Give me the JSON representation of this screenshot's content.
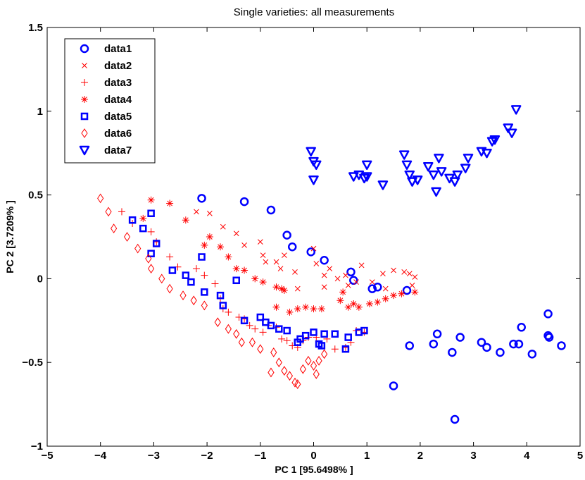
{
  "chart_data": {
    "type": "scatter",
    "title": "Single varieties: all measurements",
    "xlabel": "PC 1 [95.6498% ]",
    "ylabel": "PC 2 [3.7209% ]",
    "xlim": [
      -5,
      5
    ],
    "ylim": [
      -1,
      1.5
    ],
    "xticks": [
      "−5",
      "−4",
      "−3",
      "−2",
      "−1",
      "0",
      "1",
      "2",
      "3",
      "4",
      "5"
    ],
    "yticks": [
      "−1",
      "−0.5",
      "0",
      "0.5",
      "1",
      "1.5"
    ],
    "grid": false,
    "legend_position": "top-left",
    "series": [
      {
        "name": "data1",
        "marker": "circle",
        "color": "#0000ff",
        "points": [
          [
            -2.1,
            0.48
          ],
          [
            -1.3,
            0.46
          ],
          [
            -0.8,
            0.41
          ],
          [
            -0.5,
            0.26
          ],
          [
            -0.4,
            0.19
          ],
          [
            -0.05,
            0.16
          ],
          [
            0.2,
            0.11
          ],
          [
            0.7,
            0.04
          ],
          [
            0.75,
            -0.01
          ],
          [
            1.1,
            -0.06
          ],
          [
            1.2,
            -0.05
          ],
          [
            1.75,
            -0.07
          ],
          [
            1.8,
            -0.4
          ],
          [
            1.5,
            -0.64
          ],
          [
            2.25,
            -0.39
          ],
          [
            2.32,
            -0.33
          ],
          [
            2.6,
            -0.44
          ],
          [
            2.75,
            -0.35
          ],
          [
            3.15,
            -0.38
          ],
          [
            3.25,
            -0.41
          ],
          [
            3.5,
            -0.44
          ],
          [
            3.75,
            -0.39
          ],
          [
            3.85,
            -0.39
          ],
          [
            3.9,
            -0.29
          ],
          [
            4.1,
            -0.45
          ],
          [
            4.4,
            -0.34
          ],
          [
            4.42,
            -0.35
          ],
          [
            4.4,
            -0.21
          ],
          [
            4.65,
            -0.4
          ],
          [
            2.65,
            -0.84
          ]
        ]
      },
      {
        "name": "data2",
        "marker": "x",
        "color": "#ff0000",
        "points": [
          [
            -2.2,
            0.4
          ],
          [
            -1.95,
            0.39
          ],
          [
            -1.7,
            0.31
          ],
          [
            -1.45,
            0.27
          ],
          [
            -1.3,
            0.2
          ],
          [
            -1.0,
            0.22
          ],
          [
            -0.95,
            0.14
          ],
          [
            -0.9,
            0.1
          ],
          [
            -0.7,
            0.1
          ],
          [
            -0.62,
            0.06
          ],
          [
            -0.55,
            0.14
          ],
          [
            -0.35,
            0.04
          ],
          [
            0.0,
            0.18
          ],
          [
            0.05,
            0.09
          ],
          [
            0.2,
            0.02
          ],
          [
            0.3,
            0.06
          ],
          [
            0.45,
            0.0
          ],
          [
            0.6,
            0.02
          ],
          [
            0.65,
            -0.04
          ],
          [
            0.8,
            -0.02
          ],
          [
            0.9,
            0.08
          ],
          [
            1.1,
            -0.02
          ],
          [
            1.3,
            0.03
          ],
          [
            1.5,
            0.05
          ],
          [
            1.7,
            0.04
          ],
          [
            1.8,
            0.03
          ],
          [
            1.9,
            0.01
          ],
          [
            1.85,
            -0.04
          ],
          [
            0.2,
            -0.05
          ],
          [
            1.35,
            -0.06
          ],
          [
            -0.3,
            -0.06
          ]
        ]
      },
      {
        "name": "data3",
        "marker": "plus",
        "color": "#ff0000",
        "points": [
          [
            -3.6,
            0.4
          ],
          [
            -3.4,
            0.33
          ],
          [
            -3.05,
            0.28
          ],
          [
            -2.95,
            0.22
          ],
          [
            -2.7,
            0.13
          ],
          [
            -2.55,
            0.07
          ],
          [
            -2.2,
            0.06
          ],
          [
            -2.05,
            0.02
          ],
          [
            -1.85,
            -0.03
          ],
          [
            -1.75,
            -0.12
          ],
          [
            -1.7,
            -0.18
          ],
          [
            -1.6,
            -0.2
          ],
          [
            -1.4,
            -0.23
          ],
          [
            -1.3,
            -0.24
          ],
          [
            -1.2,
            -0.28
          ],
          [
            -1.1,
            -0.3
          ],
          [
            -0.95,
            -0.32
          ],
          [
            -0.85,
            -0.28
          ],
          [
            -0.7,
            -0.29
          ],
          [
            -0.6,
            -0.36
          ],
          [
            -0.5,
            -0.37
          ],
          [
            -0.4,
            -0.4
          ],
          [
            -0.3,
            -0.41
          ],
          [
            -0.2,
            -0.37
          ],
          [
            -0.1,
            -0.35
          ],
          [
            0.05,
            -0.35
          ],
          [
            0.25,
            -0.36
          ],
          [
            0.4,
            -0.42
          ],
          [
            0.6,
            -0.41
          ],
          [
            0.7,
            -0.38
          ],
          [
            0.8,
            -0.31
          ],
          [
            0.95,
            -0.32
          ]
        ]
      },
      {
        "name": "data4",
        "marker": "star",
        "color": "#ff0000",
        "points": [
          [
            -3.05,
            0.47
          ],
          [
            -3.2,
            0.36
          ],
          [
            -2.7,
            0.45
          ],
          [
            -2.4,
            0.35
          ],
          [
            -2.05,
            0.2
          ],
          [
            -1.95,
            0.25
          ],
          [
            -1.75,
            0.19
          ],
          [
            -1.6,
            0.13
          ],
          [
            -1.45,
            0.06
          ],
          [
            -1.3,
            0.05
          ],
          [
            -1.1,
            0.0
          ],
          [
            -0.95,
            -0.02
          ],
          [
            -0.7,
            -0.05
          ],
          [
            -0.55,
            -0.07
          ],
          [
            -0.7,
            -0.17
          ],
          [
            -0.45,
            -0.2
          ],
          [
            -0.3,
            -0.18
          ],
          [
            -0.15,
            -0.17
          ],
          [
            0.0,
            -0.18
          ],
          [
            0.15,
            -0.18
          ],
          [
            0.5,
            -0.13
          ],
          [
            0.65,
            -0.17
          ],
          [
            0.75,
            -0.15
          ],
          [
            0.85,
            -0.17
          ],
          [
            1.05,
            -0.15
          ],
          [
            1.2,
            -0.14
          ],
          [
            1.35,
            -0.12
          ],
          [
            1.5,
            -0.1
          ],
          [
            1.65,
            -0.09
          ],
          [
            1.9,
            -0.08
          ],
          [
            -0.6,
            -0.06
          ],
          [
            0.55,
            -0.08
          ]
        ]
      },
      {
        "name": "data5",
        "marker": "square",
        "color": "#0000ff",
        "points": [
          [
            -3.05,
            0.39
          ],
          [
            -3.2,
            0.3
          ],
          [
            -2.95,
            0.21
          ],
          [
            -3.05,
            0.15
          ],
          [
            -3.4,
            0.35
          ],
          [
            -2.65,
            0.05
          ],
          [
            -2.4,
            0.02
          ],
          [
            -2.3,
            -0.02
          ],
          [
            -2.1,
            0.13
          ],
          [
            -2.05,
            -0.08
          ],
          [
            -1.75,
            -0.1
          ],
          [
            -1.7,
            -0.16
          ],
          [
            -1.3,
            -0.25
          ],
          [
            -1.0,
            -0.23
          ],
          [
            -0.9,
            -0.26
          ],
          [
            -0.8,
            -0.28
          ],
          [
            -0.65,
            -0.3
          ],
          [
            -0.5,
            -0.31
          ],
          [
            -0.3,
            -0.38
          ],
          [
            -0.25,
            -0.36
          ],
          [
            -0.15,
            -0.34
          ],
          [
            0.0,
            -0.32
          ],
          [
            0.2,
            -0.33
          ],
          [
            0.4,
            -0.33
          ],
          [
            0.65,
            -0.35
          ],
          [
            0.85,
            -0.32
          ],
          [
            0.95,
            -0.31
          ],
          [
            0.6,
            -0.42
          ],
          [
            0.1,
            -0.39
          ],
          [
            0.15,
            -0.4
          ],
          [
            -1.45,
            -0.01
          ]
        ]
      },
      {
        "name": "data6",
        "marker": "diamond",
        "color": "#ff0000",
        "points": [
          [
            -4.0,
            0.48
          ],
          [
            -3.85,
            0.4
          ],
          [
            -3.75,
            0.3
          ],
          [
            -3.5,
            0.25
          ],
          [
            -3.3,
            0.18
          ],
          [
            -3.1,
            0.12
          ],
          [
            -3.05,
            0.06
          ],
          [
            -2.85,
            0.0
          ],
          [
            -2.7,
            -0.06
          ],
          [
            -2.45,
            -0.1
          ],
          [
            -2.25,
            -0.13
          ],
          [
            -2.05,
            -0.16
          ],
          [
            -1.8,
            -0.26
          ],
          [
            -1.6,
            -0.3
          ],
          [
            -1.45,
            -0.33
          ],
          [
            -1.35,
            -0.38
          ],
          [
            -1.15,
            -0.38
          ],
          [
            -1.0,
            -0.42
          ],
          [
            -0.75,
            -0.44
          ],
          [
            -0.65,
            -0.5
          ],
          [
            -0.55,
            -0.55
          ],
          [
            -0.45,
            -0.58
          ],
          [
            -0.35,
            -0.62
          ],
          [
            -0.2,
            -0.54
          ],
          [
            0.0,
            -0.52
          ],
          [
            0.1,
            -0.49
          ],
          [
            0.2,
            -0.45
          ],
          [
            -0.1,
            -0.49
          ],
          [
            -0.3,
            -0.63
          ],
          [
            -0.8,
            -0.56
          ],
          [
            0.05,
            -0.57
          ]
        ]
      },
      {
        "name": "data7",
        "marker": "triangle-down",
        "color": "#0000ff",
        "points": [
          [
            -0.05,
            0.76
          ],
          [
            0.0,
            0.7
          ],
          [
            0.05,
            0.68
          ],
          [
            0.0,
            0.59
          ],
          [
            1.0,
            0.68
          ],
          [
            0.95,
            0.6
          ],
          [
            0.85,
            0.62
          ],
          [
            0.75,
            0.61
          ],
          [
            1.0,
            0.61
          ],
          [
            1.3,
            0.56
          ],
          [
            1.7,
            0.74
          ],
          [
            1.75,
            0.68
          ],
          [
            1.8,
            0.62
          ],
          [
            1.85,
            0.58
          ],
          [
            1.95,
            0.59
          ],
          [
            2.15,
            0.67
          ],
          [
            2.25,
            0.62
          ],
          [
            2.35,
            0.72
          ],
          [
            2.4,
            0.64
          ],
          [
            2.55,
            0.6
          ],
          [
            2.65,
            0.58
          ],
          [
            2.7,
            0.62
          ],
          [
            2.3,
            0.52
          ],
          [
            2.85,
            0.66
          ],
          [
            2.9,
            0.72
          ],
          [
            3.15,
            0.76
          ],
          [
            3.25,
            0.75
          ],
          [
            3.35,
            0.82
          ],
          [
            3.4,
            0.83
          ],
          [
            3.65,
            0.9
          ],
          [
            3.72,
            0.87
          ],
          [
            3.8,
            1.01
          ]
        ]
      }
    ]
  }
}
